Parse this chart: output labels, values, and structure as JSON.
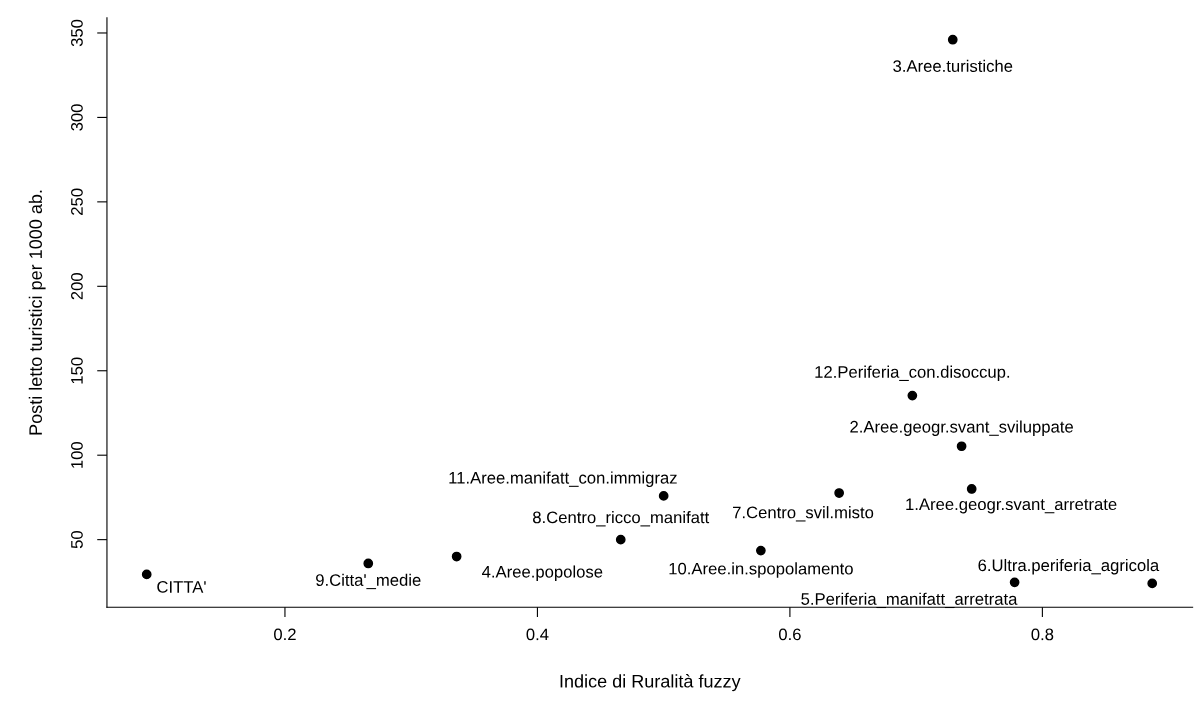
{
  "chart_data": {
    "type": "scatter",
    "xlabel": "Indice di Ruralità fuzzy",
    "ylabel": "Posti letto turistici per 1000 ab.",
    "x": [
      0.0905,
      0.266,
      0.336,
      0.466,
      0.5,
      0.577,
      0.639,
      0.697,
      0.736,
      0.744,
      0.729,
      0.778,
      0.887
    ],
    "series": [
      {
        "color": "#000000",
        "values": [
          29.4,
          35.9,
          40,
          50,
          75.9,
          43.5,
          77.6,
          135.3,
          105.3,
          80,
          346,
          24.7,
          24.1
        ]
      }
    ],
    "annotations": [
      {
        "text": "CITTA'",
        "x": 0.0905,
        "y": 29.4
      },
      {
        "text": "9.Citta'_medie",
        "x": 0.266,
        "y": 35.9
      },
      {
        "text": "4.Aree.popolose",
        "x": 0.336,
        "y": 40
      },
      {
        "text": "8.Centro_ricco_manifatt",
        "x": 0.466,
        "y": 50
      },
      {
        "text": "11.Aree.manifatt_con.immigraz",
        "x": 0.5,
        "y": 75.9
      },
      {
        "text": "10.Aree.in.spopolamento",
        "x": 0.577,
        "y": 43.5
      },
      {
        "text": "7.Centro_svil.misto",
        "x": 0.639,
        "y": 77.6
      },
      {
        "text": "12.Periferia_con.disoccup.",
        "x": 0.697,
        "y": 135.3
      },
      {
        "text": "2.Aree.geogr.svant_sviluppate",
        "x": 0.736,
        "y": 105.3
      },
      {
        "text": "1.Aree.geogr.svant_arretrate",
        "x": 0.744,
        "y": 80
      },
      {
        "text": "3.Aree.turistiche",
        "x": 0.729,
        "y": 346
      },
      {
        "text": "5.Periferia_manifatt_arretrata",
        "x": 0.778,
        "y": 24.7
      },
      {
        "text": "6.Ultra.periferia_agricola",
        "x": 0.887,
        "y": 24.1
      }
    ],
    "xlim": [
      0.059,
      0.919
    ],
    "ylim": [
      10,
      359
    ],
    "xticks": [
      0.2,
      0.4,
      0.6,
      0.8
    ],
    "yticks": [
      50,
      100,
      150,
      200,
      250,
      300,
      350
    ],
    "marker": "circle",
    "grid": false,
    "legend": false
  }
}
